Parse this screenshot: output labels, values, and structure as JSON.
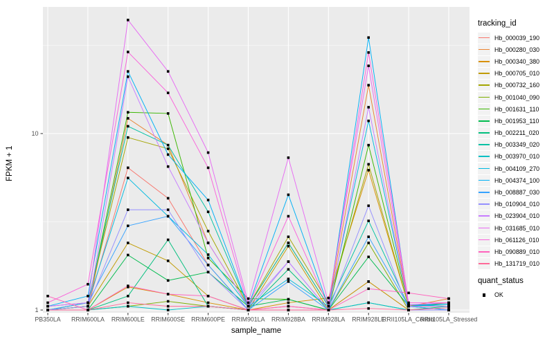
{
  "chart_data": {
    "type": "line",
    "title": "",
    "xlabel": "sample_name",
    "ylabel": "FPKM + 1",
    "yscale": "log10",
    "ylim": [
      0.95,
      52
    ],
    "yticks": [
      {
        "value": 1,
        "label": "1"
      },
      {
        "value": 10,
        "label": "10"
      }
    ],
    "minor_gridlines": [
      3.162,
      31.62
    ],
    "panel_bg": "#EBEBEB",
    "grid_color": "#FFFFFF",
    "axis_text_color": "#4D4D4D",
    "tick_color": "#333333",
    "marker": {
      "shape": "square",
      "color": "#000000",
      "size": 3.6
    },
    "categories": [
      "PB350LA",
      "RRIM600LA",
      "RRIM600LE",
      "RRIM600SE",
      "RRIM600PE",
      "RRIM901LA",
      "RRIM928BA",
      "RRIM928LA",
      "RRIM928LE",
      "RRII105LA_Control",
      "RRII105LA_Stressed"
    ],
    "series": [
      {
        "name": "Hb_000039_190",
        "color": "#F8766D",
        "values": [
          1.0,
          1.05,
          6.4,
          4.3,
          1.8,
          1.0,
          1.05,
          1.0,
          1.45,
          1.0,
          1.0
        ]
      },
      {
        "name": "Hb_000280_030",
        "color": "#EA8331",
        "values": [
          1.0,
          1.0,
          12.2,
          8.6,
          2.4,
          1.05,
          2.4,
          1.05,
          18.8,
          1.05,
          1.16
        ]
      },
      {
        "name": "Hb_000340_380",
        "color": "#D89000",
        "values": [
          1.0,
          1.0,
          1.35,
          1.23,
          1.1,
          1.0,
          1.1,
          1.17,
          6.2,
          1.05,
          1.05
        ]
      },
      {
        "name": "Hb_000705_010",
        "color": "#C09B00",
        "values": [
          1.0,
          1.05,
          2.4,
          1.9,
          1.2,
          1.0,
          2.3,
          1.0,
          1.45,
          1.0,
          1.0
        ]
      },
      {
        "name": "Hb_000732_160",
        "color": "#A3A500",
        "values": [
          1.0,
          1.1,
          9.5,
          8.2,
          2.8,
          1.05,
          2.6,
          1.1,
          6.7,
          1.05,
          1.1
        ]
      },
      {
        "name": "Hb_001040_090",
        "color": "#7CAE00",
        "values": [
          1.0,
          1.0,
          1.05,
          1.12,
          1.05,
          1.0,
          1.0,
          1.0,
          2.4,
          1.0,
          1.0
        ]
      },
      {
        "name": "Hb_001631_110",
        "color": "#39B600",
        "values": [
          1.0,
          1.05,
          13.2,
          13.0,
          1.97,
          1.16,
          1.15,
          1.0,
          8.6,
          1.07,
          1.05
        ]
      },
      {
        "name": "Hb_001953_110",
        "color": "#00BB4E",
        "values": [
          1.0,
          1.0,
          2.05,
          1.47,
          1.64,
          1.05,
          1.15,
          1.0,
          2.0,
          1.05,
          1.0
        ]
      },
      {
        "name": "Hb_002211_020",
        "color": "#00BF7D",
        "values": [
          1.0,
          1.0,
          1.2,
          2.5,
          1.05,
          1.0,
          1.7,
          1.0,
          1.1,
          1.0,
          1.05
        ]
      },
      {
        "name": "Hb_003349_020",
        "color": "#00C1A3",
        "values": [
          1.0,
          1.1,
          11.0,
          8.6,
          3.6,
          1.05,
          2.4,
          1.05,
          3.2,
          1.05,
          1.08
        ]
      },
      {
        "name": "Hb_003970_010",
        "color": "#00BFC4",
        "values": [
          1.0,
          1.0,
          1.05,
          1.0,
          1.05,
          1.0,
          1.0,
          1.0,
          1.1,
          1.0,
          1.0
        ]
      },
      {
        "name": "Hb_004109_270",
        "color": "#00BAE0",
        "values": [
          1.05,
          1.1,
          5.6,
          3.4,
          2.06,
          1.05,
          1.5,
          1.05,
          11.8,
          1.07,
          1.05
        ]
      },
      {
        "name": "Hb_004374_100",
        "color": "#00B0F6",
        "values": [
          1.05,
          1.2,
          22.5,
          7.6,
          4.2,
          1.05,
          4.5,
          1.05,
          35.0,
          1.07,
          1.08
        ]
      },
      {
        "name": "Hb_008887_030",
        "color": "#35A2FF",
        "values": [
          1.0,
          1.1,
          3.0,
          3.4,
          1.8,
          1.0,
          1.45,
          1.0,
          2.6,
          1.05,
          1.0
        ]
      },
      {
        "name": "Hb_010904_010",
        "color": "#9590FF",
        "values": [
          1.0,
          1.05,
          3.7,
          3.7,
          1.64,
          1.0,
          1.88,
          1.0,
          3.9,
          1.0,
          1.0
        ]
      },
      {
        "name": "Hb_023904_010",
        "color": "#C77CFF",
        "values": [
          1.0,
          1.0,
          21.0,
          6.5,
          2.4,
          1.05,
          1.88,
          1.0,
          14.1,
          1.05,
          1.05
        ]
      },
      {
        "name": "Hb_031685_010",
        "color": "#E76BF3",
        "values": [
          1.05,
          1.1,
          44.0,
          22.5,
          7.8,
          1.1,
          7.3,
          1.1,
          24.2,
          1.07,
          1.1
        ]
      },
      {
        "name": "Hb_061126_010",
        "color": "#FA62DB",
        "values": [
          1.1,
          1.4,
          29.0,
          17.0,
          6.4,
          1.05,
          3.4,
          1.05,
          28.8,
          1.1,
          1.1
        ]
      },
      {
        "name": "Hb_090889_010",
        "color": "#FF62BC",
        "values": [
          1.2,
          1.0,
          1.37,
          1.23,
          1.2,
          1.0,
          1.05,
          1.0,
          1.32,
          1.25,
          1.16
        ]
      },
      {
        "name": "Hb_131719_010",
        "color": "#FF6A98",
        "values": [
          1.0,
          1.0,
          1.1,
          1.05,
          1.05,
          1.0,
          1.0,
          1.0,
          1.02,
          1.0,
          1.03
        ]
      }
    ],
    "legend_tracking": {
      "title": "tracking_id",
      "position": "right"
    },
    "legend_quant": {
      "title": "quant_status",
      "items": [
        {
          "label": "OK",
          "marker": "black-square"
        }
      ]
    }
  }
}
